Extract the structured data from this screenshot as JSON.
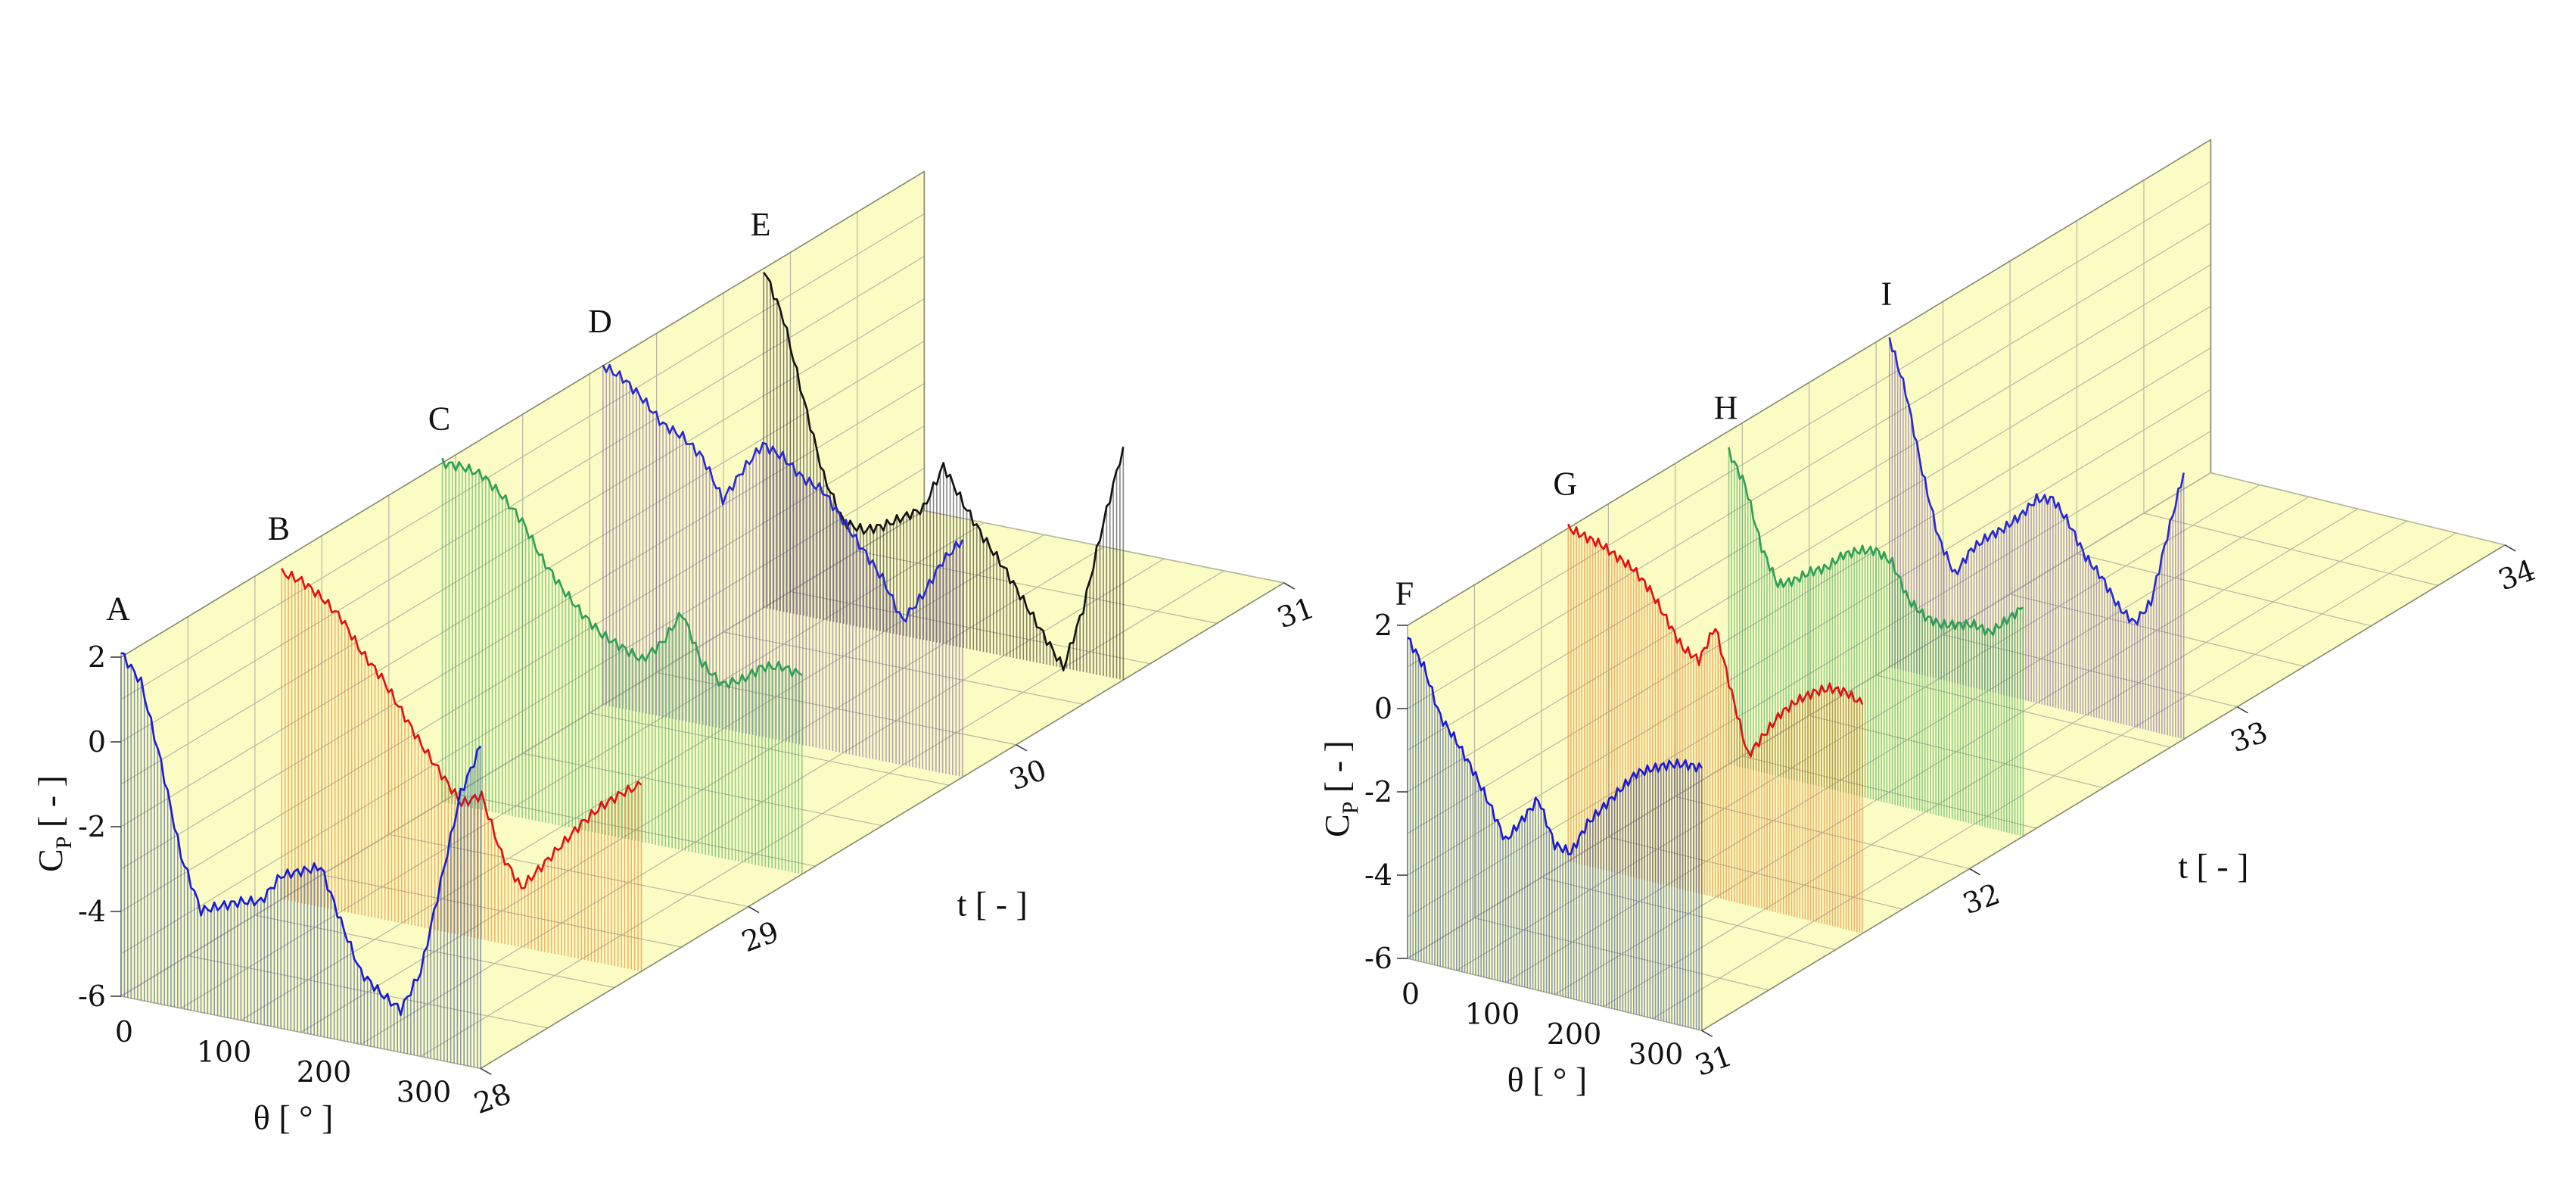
{
  "chart_data": [
    {
      "type": "line",
      "projection": "3d-waterfall",
      "title": "",
      "xlabel": "θ [ ° ]",
      "ylabel": "t [ - ]",
      "zlabel": "C",
      "zlabel_sub": "P",
      "zlabel_unit": " [ - ]",
      "xlim": [
        0,
        360
      ],
      "tlim": [
        28,
        31
      ],
      "zlim": [
        -6,
        2
      ],
      "x_ticks": [
        "0",
        "100",
        "200",
        "300"
      ],
      "t_ticks": [
        "28",
        "29",
        "30",
        "31"
      ],
      "z_ticks": [
        "2",
        "0",
        "-2",
        "-4",
        "-6"
      ],
      "grid": true,
      "series": [
        {
          "name": "A",
          "t": 28.0,
          "color": "#1a1ad6",
          "x": [
            0,
            20,
            40,
            60,
            80,
            100,
            120,
            140,
            160,
            180,
            200,
            220,
            240,
            260,
            280,
            300,
            320,
            340,
            360
          ],
          "values": [
            2.1,
            1.5,
            -0.3,
            -2.4,
            -3.6,
            -3.4,
            -3.2,
            -3.1,
            -2.4,
            -2.2,
            -2.0,
            -3.2,
            -4.3,
            -4.7,
            -5.0,
            -4.0,
            -1.8,
            0.4,
            1.6
          ]
        },
        {
          "name": "B",
          "t": 28.6,
          "color": "#e01010",
          "x": [
            0,
            20,
            40,
            60,
            80,
            100,
            120,
            140,
            160,
            180,
            200,
            220,
            240,
            260,
            280,
            300,
            320,
            340,
            360
          ],
          "values": [
            1.7,
            1.6,
            1.3,
            0.9,
            0.2,
            -0.3,
            -1.0,
            -1.7,
            -2.3,
            -2.9,
            -2.6,
            -3.9,
            -4.6,
            -4.0,
            -3.4,
            -2.8,
            -2.3,
            -1.9,
            -1.6
          ]
        },
        {
          "name": "C",
          "t": 29.2,
          "color": "#2e9e55",
          "x": [
            0,
            20,
            40,
            60,
            80,
            100,
            120,
            140,
            160,
            180,
            200,
            220,
            240,
            260,
            280,
            300,
            320,
            340,
            360
          ],
          "values": [
            2.0,
            2.0,
            1.9,
            1.5,
            1.0,
            0.2,
            -0.4,
            -0.9,
            -1.3,
            -1.5,
            -1.7,
            -1.2,
            -0.4,
            -1.5,
            -1.9,
            -1.7,
            -1.3,
            -1.2,
            -1.3
          ]
        },
        {
          "name": "D",
          "t": 29.8,
          "color": "#2828d0",
          "x": [
            0,
            20,
            40,
            60,
            80,
            100,
            120,
            140,
            160,
            180,
            200,
            220,
            240,
            260,
            280,
            300,
            320,
            340,
            360
          ],
          "values": [
            2.0,
            1.8,
            1.4,
            0.9,
            0.7,
            0.3,
            -0.6,
            0.2,
            0.9,
            0.7,
            0.3,
            0.1,
            -0.5,
            -1.1,
            -1.7,
            -2.6,
            -1.9,
            -1.0,
            -0.4
          ]
        },
        {
          "name": "E",
          "t": 30.4,
          "color": "#111111",
          "x": [
            0,
            20,
            40,
            60,
            80,
            100,
            120,
            140,
            160,
            180,
            200,
            220,
            240,
            260,
            280,
            300,
            320,
            340,
            360
          ],
          "values": [
            2.0,
            0.9,
            -0.9,
            -2.6,
            -3.6,
            -3.7,
            -3.5,
            -3.2,
            -2.9,
            -1.8,
            -2.6,
            -3.3,
            -3.9,
            -4.6,
            -5.3,
            -6.0,
            -4.5,
            -2.4,
            -0.5
          ]
        }
      ],
      "slice_labels": [
        "A",
        "B",
        "C",
        "D",
        "E"
      ]
    },
    {
      "type": "line",
      "projection": "3d-waterfall",
      "title": "",
      "xlabel": "θ [ ° ]",
      "ylabel": "t [ - ]",
      "zlabel": "C",
      "zlabel_sub": "P",
      "zlabel_unit": " [ - ]",
      "xlim": [
        0,
        360
      ],
      "tlim": [
        31,
        34
      ],
      "zlim": [
        -6,
        2
      ],
      "x_ticks": [
        "0",
        "100",
        "200",
        "300"
      ],
      "t_ticks": [
        "31",
        "32",
        "33",
        "34"
      ],
      "z_ticks": [
        "2",
        "0",
        "-2",
        "-4",
        "-6"
      ],
      "grid": true,
      "series": [
        {
          "name": "F",
          "t": 31.0,
          "color": "#1a1ad6",
          "x": [
            0,
            20,
            40,
            60,
            80,
            100,
            120,
            140,
            160,
            180,
            200,
            220,
            240,
            260,
            280,
            300,
            320,
            340,
            360
          ],
          "values": [
            1.7,
            1.1,
            0.0,
            -0.5,
            -1.1,
            -1.8,
            -2.6,
            -2.0,
            -1.4,
            -2.4,
            -2.5,
            -1.7,
            -1.2,
            -0.7,
            -0.2,
            0.0,
            0.2,
            0.3,
            0.3
          ]
        },
        {
          "name": "G",
          "t": 31.6,
          "color": "#e01010",
          "x": [
            0,
            20,
            40,
            60,
            80,
            100,
            120,
            140,
            160,
            180,
            200,
            220,
            240,
            260,
            280,
            300,
            320,
            340,
            360
          ],
          "values": [
            2.0,
            1.9,
            1.8,
            1.6,
            1.4,
            1.0,
            0.4,
            -0.2,
            -0.4,
            0.5,
            -1.0,
            -2.4,
            -1.8,
            -1.2,
            -0.8,
            -0.5,
            -0.3,
            -0.3,
            -0.5
          ]
        },
        {
          "name": "H",
          "t": 32.2,
          "color": "#2e9e55",
          "x": [
            0,
            20,
            40,
            60,
            80,
            100,
            120,
            140,
            160,
            180,
            200,
            220,
            240,
            260,
            280,
            300,
            320,
            340,
            360
          ],
          "values": [
            1.5,
            0.8,
            -0.6,
            -1.4,
            -1.2,
            -0.9,
            -0.7,
            -0.3,
            -0.1,
            0.0,
            -0.2,
            -1.0,
            -1.3,
            -1.4,
            -1.3,
            -1.2,
            -1.3,
            -0.9,
            -0.5
          ]
        },
        {
          "name": "I",
          "t": 32.8,
          "color": "#2828d0",
          "x": [
            0,
            20,
            40,
            60,
            80,
            100,
            120,
            140,
            160,
            180,
            200,
            220,
            240,
            260,
            280,
            300,
            320,
            340,
            360
          ],
          "values": [
            1.9,
            0.7,
            -1.1,
            -2.6,
            -3.4,
            -2.7,
            -2.3,
            -2.0,
            -1.6,
            -1.1,
            -1.0,
            -1.5,
            -2.2,
            -2.6,
            -3.2,
            -3.5,
            -2.9,
            -1.2,
            0.4
          ]
        }
      ],
      "slice_labels": [
        "F",
        "G",
        "H",
        "I"
      ]
    }
  ]
}
